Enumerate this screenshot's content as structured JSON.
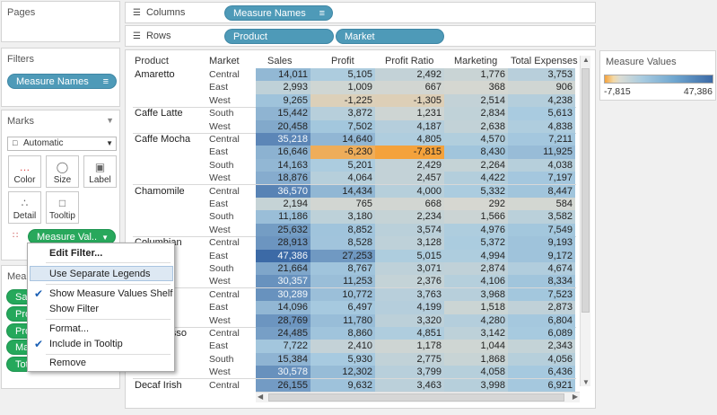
{
  "pages": {
    "title": "Pages"
  },
  "columns": {
    "label": "Columns",
    "pills": [
      "Measure Names"
    ]
  },
  "rows": {
    "label": "Rows",
    "pills": [
      "Product",
      "Market"
    ]
  },
  "filters": {
    "title": "Filters",
    "pill": "Measure Names"
  },
  "marks": {
    "title": "Marks",
    "type": "Automatic",
    "buttons": {
      "color": "Color",
      "size": "Size",
      "label": "Label",
      "detail": "Detail",
      "tooltip": "Tooltip"
    },
    "pill": "Measure Val.."
  },
  "measures_card": {
    "title": "Mea",
    "pills": [
      "Sa",
      "Pro",
      "Pro",
      "Ma",
      "Tot"
    ]
  },
  "legend": {
    "title": "Measure Values",
    "min_label": "-7,815",
    "max_label": "47,386",
    "colors": {
      "low": "#f4a23c",
      "mid": "#d8d8d0",
      "high": "#3c6aa6"
    }
  },
  "table": {
    "headers": [
      "Product",
      "Market",
      "Sales",
      "Profit",
      "Profit Ratio",
      "Marketing",
      "Total Expenses"
    ],
    "groups": [
      {
        "product": "Amaretto",
        "rows": [
          {
            "market": "Central",
            "values": [
              "14,011",
              "5,105",
              "2,492",
              "1,776",
              "3,753"
            ]
          },
          {
            "market": "East",
            "values": [
              "2,993",
              "1,009",
              "667",
              "368",
              "906"
            ]
          },
          {
            "market": "West",
            "values": [
              "9,265",
              "-1,225",
              "-1,305",
              "2,514",
              "4,238"
            ]
          }
        ]
      },
      {
        "product": "Caffe Latte",
        "rows": [
          {
            "market": "South",
            "values": [
              "15,442",
              "3,872",
              "1,231",
              "2,834",
              "5,613"
            ]
          },
          {
            "market": "West",
            "values": [
              "20,458",
              "7,502",
              "4,187",
              "2,638",
              "4,838"
            ]
          }
        ]
      },
      {
        "product": "Caffe Mocha",
        "rows": [
          {
            "market": "Central",
            "values": [
              "35,218",
              "14,640",
              "4,805",
              "4,570",
              "7,211"
            ]
          },
          {
            "market": "East",
            "values": [
              "16,646",
              "-6,230",
              "-7,815",
              "8,430",
              "11,925"
            ]
          },
          {
            "market": "South",
            "values": [
              "14,163",
              "5,201",
              "2,429",
              "2,264",
              "4,038"
            ]
          },
          {
            "market": "West",
            "values": [
              "18,876",
              "4,064",
              "2,457",
              "4,422",
              "7,197"
            ]
          }
        ]
      },
      {
        "product": "Chamomile",
        "rows": [
          {
            "market": "Central",
            "values": [
              "36,570",
              "14,434",
              "4,000",
              "5,332",
              "8,447"
            ]
          },
          {
            "market": "East",
            "values": [
              "2,194",
              "765",
              "668",
              "292",
              "584"
            ]
          },
          {
            "market": "South",
            "values": [
              "11,186",
              "3,180",
              "2,234",
              "1,566",
              "3,582"
            ]
          },
          {
            "market": "West",
            "values": [
              "25,632",
              "8,852",
              "3,574",
              "4,976",
              "7,549"
            ]
          }
        ]
      },
      {
        "product": "Columbian",
        "rows": [
          {
            "market": "Central",
            "values": [
              "28,913",
              "8,528",
              "3,128",
              "5,372",
              "9,193"
            ]
          },
          {
            "market": "East",
            "values": [
              "47,386",
              "27,253",
              "5,015",
              "4,994",
              "9,172"
            ]
          },
          {
            "market": "South",
            "values": [
              "21,664",
              "8,767",
              "3,071",
              "2,874",
              "4,674"
            ]
          },
          {
            "market": "West",
            "values": [
              "30,357",
              "11,253",
              "2,376",
              "4,106",
              "8,334"
            ]
          }
        ]
      },
      {
        "product": "Decaf Irish Cream",
        "display": "g",
        "rows": [
          {
            "market": "Central",
            "values": [
              "30,289",
              "10,772",
              "3,763",
              "3,968",
              "7,523"
            ]
          },
          {
            "market": "East",
            "values": [
              "14,096",
              "6,497",
              "4,199",
              "1,518",
              "2,873"
            ]
          },
          {
            "market": "West",
            "values": [
              "28,769",
              "11,780",
              "3,320",
              "4,280",
              "6,804"
            ]
          }
        ]
      },
      {
        "product": "Decaf Espresso",
        "display": "presso",
        "rows": [
          {
            "market": "Central",
            "values": [
              "24,485",
              "8,860",
              "4,851",
              "3,142",
              "6,089"
            ]
          },
          {
            "market": "East",
            "values": [
              "7,722",
              "2,410",
              "1,178",
              "1,044",
              "2,343"
            ]
          },
          {
            "market": "South",
            "values": [
              "15,384",
              "5,930",
              "2,775",
              "1,868",
              "4,056"
            ]
          },
          {
            "market": "West",
            "values": [
              "30,578",
              "12,302",
              "3,799",
              "4,058",
              "6,436"
            ]
          }
        ]
      },
      {
        "product": "Decaf Irish",
        "rows": [
          {
            "market": "Central",
            "values": [
              "26,155",
              "9,632",
              "3,463",
              "3,998",
              "6,921"
            ]
          }
        ]
      }
    ]
  },
  "context_menu": {
    "items": [
      {
        "label": "Edit Filter...",
        "bold": true,
        "checked": false
      },
      {
        "label": "Use Separate Legends",
        "bold": false,
        "checked": false,
        "highlighted": true
      },
      {
        "label": "Show Measure Values Shelf",
        "bold": false,
        "checked": true
      },
      {
        "label": "Show Filter",
        "bold": false,
        "checked": false
      },
      {
        "label": "Format...",
        "bold": false,
        "checked": false
      },
      {
        "label": "Include in Tooltip",
        "bold": false,
        "checked": true
      },
      {
        "label": "Remove",
        "bold": false,
        "checked": false
      }
    ]
  }
}
